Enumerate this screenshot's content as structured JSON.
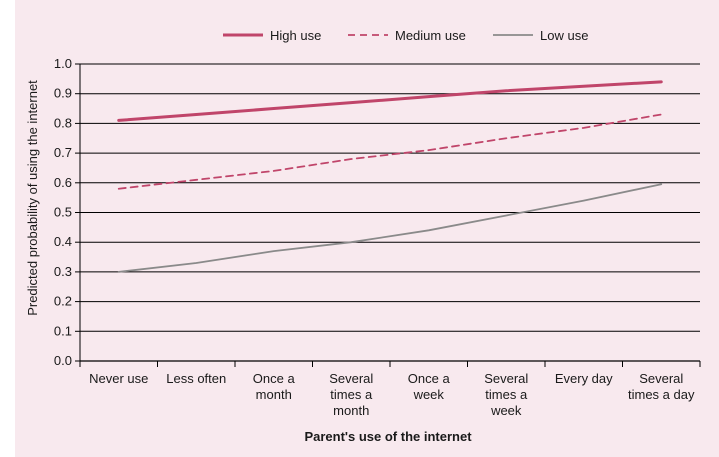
{
  "chart_data": {
    "type": "line",
    "title": "",
    "xlabel": "Parent's use of the internet",
    "ylabel": "Predicted probability of using the internet",
    "ylim": [
      0.0,
      1.0
    ],
    "yticks": [
      "0.0",
      "0.1",
      "0.2",
      "0.3",
      "0.4",
      "0.5",
      "0.6",
      "0.7",
      "0.8",
      "0.9",
      "1.0"
    ],
    "grid": "horizontal",
    "legend_position": "top",
    "categories": [
      [
        "Never use"
      ],
      [
        "Less often"
      ],
      [
        "Once a",
        "month"
      ],
      [
        "Several",
        "times a",
        "month"
      ],
      [
        "Once a",
        "week"
      ],
      [
        "Several",
        "times a",
        "week"
      ],
      [
        "Every day"
      ],
      [
        "Several",
        "times a day"
      ]
    ],
    "series": [
      {
        "name": "High use",
        "style": "solid-thick",
        "color": "#c0456a",
        "values": [
          0.81,
          0.83,
          0.85,
          0.87,
          0.89,
          0.91,
          0.925,
          0.94
        ]
      },
      {
        "name": "Medium use",
        "style": "dashed",
        "color": "#c0456a",
        "values": [
          0.58,
          0.61,
          0.64,
          0.68,
          0.71,
          0.75,
          0.785,
          0.83
        ]
      },
      {
        "name": "Low use",
        "style": "solid",
        "color": "#8a8a8a",
        "values": [
          0.3,
          0.33,
          0.37,
          0.4,
          0.44,
          0.49,
          0.54,
          0.595
        ]
      }
    ]
  }
}
